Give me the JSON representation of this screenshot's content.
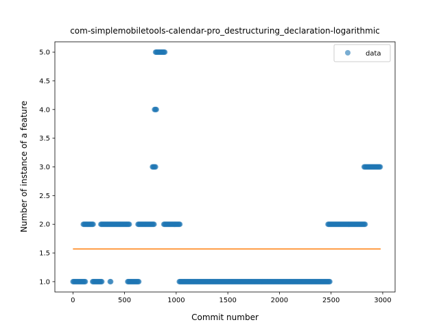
{
  "chart_data": {
    "type": "scatter",
    "title": "com-simplemobiletools-calendar-pro_destructuring_declaration-logarithmic",
    "xlabel": "Commit number",
    "ylabel": "Number of instance of a feature",
    "xlim": [
      -175,
      3120
    ],
    "ylim": [
      0.82,
      5.18
    ],
    "x_ticks": [
      "0",
      "500",
      "1000",
      "1500",
      "2000",
      "2500",
      "3000"
    ],
    "y_ticks": [
      "1.0",
      "1.5",
      "2.0",
      "2.5",
      "3.0",
      "3.5",
      "4.0",
      "4.5",
      "5.0"
    ],
    "legend": {
      "placement": "upper right",
      "entries": [
        "data"
      ]
    },
    "grid": false,
    "colors": {
      "data": "#1f77b4",
      "fit": "#ff7f0e"
    },
    "series": [
      {
        "name": "data",
        "kind": "scatter",
        "segments": [
          {
            "x_start": 0,
            "x_end": 120,
            "y": 1
          },
          {
            "x_start": 100,
            "x_end": 200,
            "y": 2
          },
          {
            "x_start": 190,
            "x_end": 280,
            "y": 1
          },
          {
            "x_start": 270,
            "x_end": 550,
            "y": 2
          },
          {
            "x_start": 360,
            "x_end": 370,
            "y": 1
          },
          {
            "x_start": 530,
            "x_end": 640,
            "y": 1
          },
          {
            "x_start": 630,
            "x_end": 790,
            "y": 2
          },
          {
            "x_start": 770,
            "x_end": 800,
            "y": 3
          },
          {
            "x_start": 790,
            "x_end": 810,
            "y": 4
          },
          {
            "x_start": 800,
            "x_end": 890,
            "y": 5
          },
          {
            "x_start": 880,
            "x_end": 1040,
            "y": 2
          },
          {
            "x_start": 1030,
            "x_end": 2490,
            "y": 1
          },
          {
            "x_start": 2470,
            "x_end": 2830,
            "y": 2
          },
          {
            "x_start": 2820,
            "x_end": 2980,
            "y": 3
          }
        ]
      },
      {
        "name": "",
        "kind": "line",
        "x": [
          0,
          2980
        ],
        "y": [
          1.57,
          1.57
        ]
      }
    ]
  }
}
